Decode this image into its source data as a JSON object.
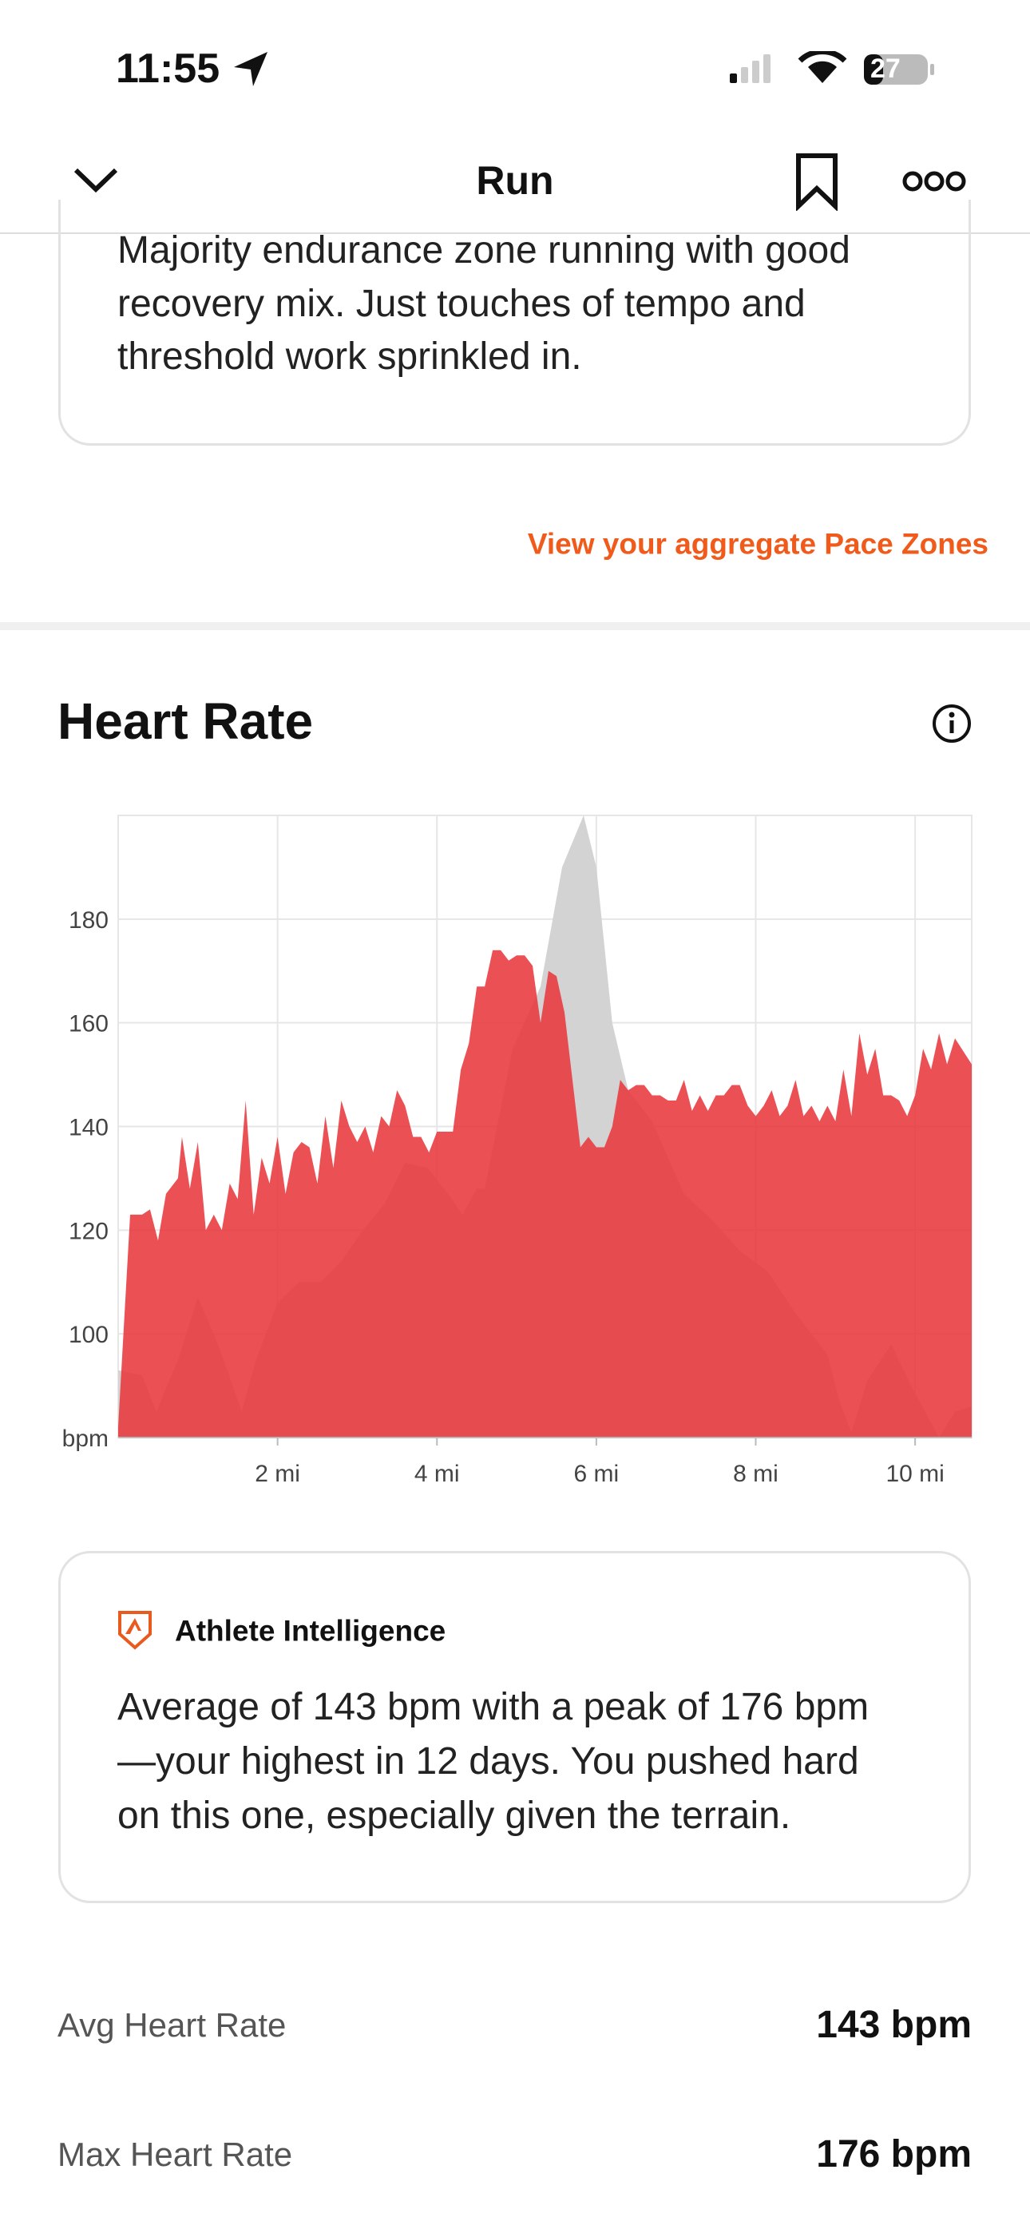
{
  "status_bar": {
    "time": "11:55",
    "battery": "27"
  },
  "nav": {
    "title": "Run"
  },
  "summary_card": {
    "lines": [
      "Majority endurance zone running with good",
      "recovery mix. Just touches of tempo and",
      "threshold work sprinkled in."
    ]
  },
  "link": "View your aggregate Pace Zones",
  "section_title": "Heart Rate",
  "chart_data": {
    "type": "area",
    "xlim": [
      0,
      10.71
    ],
    "ylim": [
      80,
      200
    ],
    "xticks": [
      {
        "value": 2,
        "label": "2 mi"
      },
      {
        "value": 4,
        "label": "4 mi"
      },
      {
        "value": 6,
        "label": "6 mi"
      },
      {
        "value": 8,
        "label": "8 mi"
      },
      {
        "value": 10,
        "label": "10 mi"
      }
    ],
    "yticks": [
      {
        "value": 80,
        "label": "bpm"
      },
      100,
      120,
      140,
      160,
      180
    ],
    "grid": true,
    "series": [
      {
        "color": "#d3d3d3",
        "x": [
          0,
          0.3,
          0.48,
          0.75,
          1.0,
          1.2,
          1.37,
          1.55,
          1.73,
          2.0,
          2.27,
          2.54,
          2.8,
          3.07,
          3.34,
          3.6,
          3.88,
          4.14,
          4.32,
          4.5,
          4.6,
          4.95,
          5.3,
          5.57,
          5.84,
          6.0,
          6.2,
          6.4,
          6.7,
          7.1,
          7.45,
          7.8,
          8.15,
          8.5,
          8.9,
          9.05,
          9.2,
          9.4,
          9.7,
          9.95,
          10.3,
          10.5,
          10.71
        ],
        "values": [
          93,
          92,
          85,
          95,
          107,
          100,
          93,
          85,
          95,
          106,
          110,
          110,
          114,
          120,
          125,
          133,
          132,
          127,
          123,
          128,
          128,
          155,
          167,
          190,
          200,
          190,
          160,
          147,
          141,
          127,
          122,
          116,
          112,
          104,
          96,
          87,
          81,
          91,
          98,
          90,
          80,
          85,
          86
        ]
      },
      {
        "color": "#e8383d",
        "x": [
          0,
          0.15,
          0.3,
          0.4,
          0.5,
          0.6,
          0.75,
          0.8,
          0.9,
          1.0,
          1.1,
          1.2,
          1.3,
          1.4,
          1.5,
          1.6,
          1.7,
          1.8,
          1.9,
          2.0,
          2.1,
          2.2,
          2.3,
          2.4,
          2.5,
          2.6,
          2.7,
          2.8,
          2.9,
          3.0,
          3.1,
          3.2,
          3.3,
          3.4,
          3.5,
          3.6,
          3.7,
          3.8,
          3.9,
          4.0,
          4.2,
          4.3,
          4.4,
          4.5,
          4.6,
          4.7,
          4.8,
          4.9,
          5.0,
          5.1,
          5.2,
          5.3,
          5.4,
          5.5,
          5.6,
          5.8,
          5.9,
          6.0,
          6.1,
          6.2,
          6.3,
          6.4,
          6.5,
          6.6,
          6.7,
          6.8,
          6.9,
          7.0,
          7.1,
          7.2,
          7.3,
          7.4,
          7.5,
          7.6,
          7.7,
          7.8,
          7.9,
          8.0,
          8.1,
          8.2,
          8.3,
          8.4,
          8.5,
          8.6,
          8.7,
          8.8,
          8.9,
          9.0,
          9.1,
          9.2,
          9.3,
          9.4,
          9.5,
          9.6,
          9.7,
          9.8,
          9.9,
          10.0,
          10.1,
          10.2,
          10.3,
          10.4,
          10.5,
          10.71
        ],
        "values": [
          82,
          123,
          123,
          124,
          118,
          127,
          130,
          138,
          128,
          137,
          120,
          123,
          120,
          129,
          126,
          145,
          123,
          134,
          129,
          138,
          127,
          135,
          137,
          136,
          129,
          142,
          132,
          145,
          140,
          137,
          140,
          135,
          142,
          140,
          147,
          144,
          138,
          138,
          135,
          139,
          139,
          151,
          156,
          167,
          167,
          174,
          174,
          172,
          173,
          173,
          171,
          160,
          170,
          169,
          162,
          136,
          138,
          136,
          136,
          140,
          149,
          147,
          148,
          148,
          146,
          146,
          145,
          145,
          149,
          143,
          146,
          143,
          146,
          146,
          148,
          148,
          144,
          142,
          144,
          147,
          142,
          144,
          149,
          142,
          144,
          141,
          144,
          141,
          151,
          142,
          158,
          150,
          155,
          146,
          146,
          145,
          142,
          146,
          155,
          151,
          158,
          152,
          157,
          152
        ]
      }
    ]
  },
  "insight_card": {
    "title": "Athlete Intelligence",
    "lines": [
      "Average of 143 bpm with a peak of 176 bpm",
      "—your highest in 12 days. You pushed hard",
      "on this one, especially given the terrain."
    ]
  },
  "stats": [
    {
      "label": "Avg Heart Rate",
      "value": "143 bpm"
    },
    {
      "label": "Max Heart Rate",
      "value": "176 bpm"
    }
  ]
}
